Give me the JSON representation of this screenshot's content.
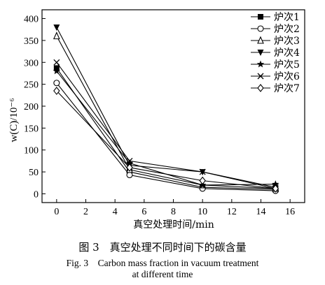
{
  "chart_data": {
    "type": "line",
    "x": [
      0,
      5,
      10,
      15
    ],
    "xlabel": "真空处理时间/min",
    "ylabel": "w(C)/10⁻⁶",
    "xlim": [
      -1,
      17
    ],
    "ylim": [
      -20,
      420
    ],
    "xticks": [
      0,
      2,
      4,
      6,
      8,
      10,
      12,
      14,
      16
    ],
    "yticks": [
      0,
      50,
      100,
      150,
      200,
      250,
      300,
      350,
      400
    ],
    "grid": false,
    "legend_position": "top-right",
    "series": [
      {
        "name": "炉次1",
        "marker": "square",
        "values": [
          287,
          50,
          15,
          10
        ]
      },
      {
        "name": "炉次2",
        "marker": "circle",
        "values": [
          253,
          43,
          12,
          7
        ]
      },
      {
        "name": "炉次3",
        "marker": "triangle-up",
        "values": [
          360,
          55,
          20,
          12
        ]
      },
      {
        "name": "炉次4",
        "marker": "triangle-down",
        "values": [
          380,
          65,
          50,
          12
        ]
      },
      {
        "name": "炉次5",
        "marker": "star",
        "values": [
          280,
          70,
          20,
          22
        ]
      },
      {
        "name": "炉次6",
        "marker": "x",
        "values": [
          300,
          75,
          50,
          15
        ]
      },
      {
        "name": "炉次7",
        "marker": "diamond",
        "values": [
          235,
          60,
          30,
          12
        ]
      }
    ]
  },
  "caption": {
    "zh": "图 3　真空处理不同时间下的碳含量",
    "en_line1": "Fig. 3　Carbon mass fraction in vacuum treatment",
    "en_line2": "at different time"
  }
}
